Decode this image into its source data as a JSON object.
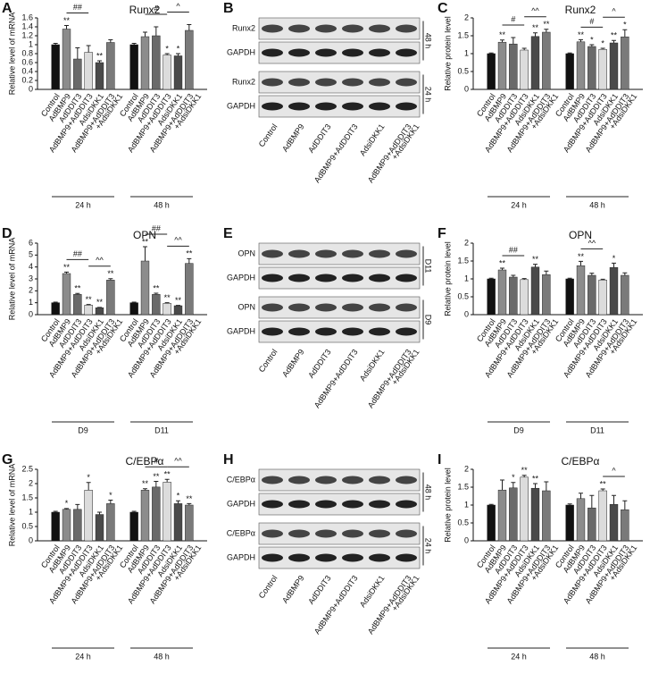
{
  "chart_data": [
    {
      "type": "bar",
      "panel": "A",
      "title": "Runx2",
      "y_label": "Relative level of mRNA",
      "categories": [
        "Control",
        "AdBMP9",
        "AdDDIT3",
        "AdBMP9+AdDDIT3",
        "AdsiDKK1",
        [
          "AdBMP9+AdDDIT3",
          "+AdsiDKK1"
        ]
      ],
      "colors": [
        "#111111",
        "#8c8c8c",
        "#6a6a6a",
        "#dcdcdc",
        "#4a4a4a",
        "#7a7a7a"
      ],
      "ylim": [
        0,
        1.6
      ],
      "yticks": [
        0.0,
        0.2,
        0.4,
        0.6,
        0.8,
        1.0,
        1.2,
        1.4,
        1.6
      ],
      "groups": [
        {
          "name": "24 h",
          "values": [
            1.0,
            1.35,
            0.68,
            0.83,
            0.6,
            1.05
          ],
          "errors": [
            0.03,
            0.08,
            0.25,
            0.15,
            0.04,
            0.06
          ],
          "stars": [
            null,
            "**",
            null,
            null,
            "**",
            null
          ],
          "brackets": [
            {
              "from": 1,
              "to": 3,
              "label": "##"
            }
          ]
        },
        {
          "name": "48 h",
          "values": [
            1.0,
            1.18,
            1.2,
            0.77,
            0.75,
            1.32
          ],
          "errors": [
            0.03,
            0.1,
            0.2,
            0.03,
            0.05,
            0.13
          ],
          "stars": [
            null,
            null,
            null,
            "*",
            "*",
            null
          ],
          "brackets": [
            {
              "from": 1,
              "to": 3,
              "label": "#"
            },
            {
              "from": 3,
              "to": 5,
              "label": "^"
            }
          ]
        }
      ]
    },
    {
      "type": "bar",
      "panel": "C",
      "title": "Runx2",
      "y_label": "Relative protein level",
      "categories": [
        "Control",
        "AdBMP9",
        "AdDDIT3",
        "AdBMP9+AdDDIT3",
        "AdsiDKK1",
        [
          "AdBMP9+AdDDIT3",
          "+AdsiDKK1"
        ]
      ],
      "colors": [
        "#111111",
        "#8c8c8c",
        "#6a6a6a",
        "#dcdcdc",
        "#4a4a4a",
        "#7a7a7a"
      ],
      "ylim": [
        0,
        2.0
      ],
      "yticks": [
        0.0,
        0.5,
        1.0,
        1.5,
        2.0
      ],
      "groups": [
        {
          "name": "24 h",
          "values": [
            1.0,
            1.32,
            1.27,
            1.1,
            1.48,
            1.6
          ],
          "errors": [
            0.02,
            0.06,
            0.18,
            0.05,
            0.1,
            0.08
          ],
          "stars": [
            null,
            "**",
            null,
            null,
            "**",
            "**"
          ],
          "brackets": [
            {
              "from": 1,
              "to": 3,
              "label": "#"
            },
            {
              "from": 3,
              "to": 5,
              "label": "^^"
            }
          ]
        },
        {
          "name": "48 h",
          "values": [
            1.0,
            1.33,
            1.2,
            1.12,
            1.3,
            1.47
          ],
          "errors": [
            0.02,
            0.06,
            0.05,
            0.03,
            0.07,
            0.2
          ],
          "stars": [
            null,
            "**",
            "*",
            "*",
            "**",
            "*"
          ],
          "brackets": [
            {
              "from": 1,
              "to": 3,
              "label": "#"
            },
            {
              "from": 3,
              "to": 5,
              "label": "^"
            }
          ]
        }
      ]
    },
    {
      "type": "bar",
      "panel": "D",
      "title": "OPN",
      "y_label": "Relative level of mRNA",
      "categories": [
        "Control",
        "AdBMP9",
        "AdDDIT3",
        "AdBMP9+AdDDIT3",
        "AdsiDKK1",
        [
          "AdBMP9+AdDDIT3",
          "+AdsiDKK1"
        ]
      ],
      "colors": [
        "#111111",
        "#8c8c8c",
        "#6a6a6a",
        "#dcdcdc",
        "#4a4a4a",
        "#7a7a7a"
      ],
      "ylim": [
        0,
        6
      ],
      "yticks": [
        0,
        1,
        2,
        3,
        4,
        5,
        6
      ],
      "groups": [
        {
          "name": "D9",
          "values": [
            1.0,
            3.45,
            1.7,
            0.8,
            0.58,
            2.9
          ],
          "errors": [
            0.05,
            0.12,
            0.08,
            0.05,
            0.03,
            0.12
          ],
          "stars": [
            null,
            "**",
            "**",
            "**",
            "**",
            "**"
          ],
          "brackets": [
            {
              "from": 1,
              "to": 3,
              "label": "##"
            },
            {
              "from": 3,
              "to": 5,
              "label": "^^"
            }
          ]
        },
        {
          "name": "D11",
          "values": [
            1.0,
            4.5,
            1.7,
            0.95,
            0.75,
            4.3
          ],
          "errors": [
            0.05,
            1.2,
            0.1,
            0.05,
            0.03,
            0.4
          ],
          "stars": [
            null,
            "**",
            "**",
            "**",
            "**",
            "**"
          ],
          "brackets": [
            {
              "from": 1,
              "to": 3,
              "label": "##"
            },
            {
              "from": 3,
              "to": 5,
              "label": "^^"
            }
          ]
        }
      ]
    },
    {
      "type": "bar",
      "panel": "F",
      "title": "OPN",
      "y_label": "Relative protein level",
      "categories": [
        "Control",
        "AdBMP9",
        "AdDDIT3",
        "AdBMP9+AdDDIT3",
        "AdsiDKK1",
        [
          "AdBMP9+AdDDIT3",
          "+AdsiDKK1"
        ]
      ],
      "colors": [
        "#111111",
        "#8c8c8c",
        "#6a6a6a",
        "#dcdcdc",
        "#4a4a4a",
        "#7a7a7a"
      ],
      "ylim": [
        0,
        2.0
      ],
      "yticks": [
        0.0,
        0.5,
        1.0,
        1.5,
        2.0
      ],
      "groups": [
        {
          "name": "D9",
          "values": [
            1.0,
            1.25,
            1.05,
            0.98,
            1.33,
            1.12
          ],
          "errors": [
            0.02,
            0.05,
            0.05,
            0.03,
            0.08,
            0.1
          ],
          "stars": [
            null,
            "**",
            null,
            null,
            "**",
            null
          ],
          "brackets": [
            {
              "from": 1,
              "to": 3,
              "label": "##"
            }
          ]
        },
        {
          "name": "D11",
          "values": [
            1.0,
            1.37,
            1.1,
            0.97,
            1.32,
            1.1
          ],
          "errors": [
            0.02,
            0.12,
            0.06,
            0.02,
            0.12,
            0.07
          ],
          "stars": [
            null,
            "**",
            null,
            null,
            "*",
            null
          ],
          "brackets": [
            {
              "from": 1,
              "to": 3,
              "label": "^^"
            }
          ]
        }
      ]
    },
    {
      "type": "bar",
      "panel": "G",
      "title": "C/EBPα",
      "y_label": "Relative level of mRNA",
      "categories": [
        "Control",
        "AdBMP9",
        "AdDDIT3",
        "AdBMP9+AdDDIT3",
        "AdsiDKK1",
        [
          "AdBMP9+AdDDIT3",
          "+AdsiDKK1"
        ]
      ],
      "colors": [
        "#111111",
        "#8c8c8c",
        "#6a6a6a",
        "#dcdcdc",
        "#4a4a4a",
        "#7a7a7a"
      ],
      "ylim": [
        0,
        2.5
      ],
      "yticks": [
        0.0,
        0.5,
        1.0,
        1.5,
        2.0,
        2.5
      ],
      "groups": [
        {
          "name": "24 h",
          "values": [
            1.0,
            1.1,
            1.1,
            1.77,
            0.92,
            1.3
          ],
          "errors": [
            0.03,
            0.03,
            0.17,
            0.27,
            0.08,
            0.12
          ],
          "stars": [
            null,
            "*",
            null,
            "*",
            null,
            "*"
          ],
          "brackets": []
        },
        {
          "name": "48 h",
          "values": [
            1.0,
            1.77,
            1.88,
            2.05,
            1.3,
            1.25
          ],
          "errors": [
            0.03,
            0.05,
            0.2,
            0.1,
            0.1,
            0.05
          ],
          "stars": [
            null,
            "**",
            "**",
            "**",
            "*",
            "**"
          ],
          "brackets": [
            {
              "from": 1,
              "to": 3,
              "label": "#"
            },
            {
              "from": 3,
              "to": 5,
              "label": "^^"
            }
          ]
        }
      ]
    },
    {
      "type": "bar",
      "panel": "I",
      "title": "C/EBPα",
      "y_label": "Relative protein level",
      "categories": [
        "Control",
        "AdBMP9",
        "AdDDIT3",
        "AdBMP9+AdDDIT3",
        "AdsiDKK1",
        [
          "AdBMP9+AdDDIT3",
          "+AdsiDKK1"
        ]
      ],
      "colors": [
        "#111111",
        "#8c8c8c",
        "#6a6a6a",
        "#dcdcdc",
        "#4a4a4a",
        "#7a7a7a"
      ],
      "ylim": [
        0,
        2.0
      ],
      "yticks": [
        0.0,
        0.5,
        1.0,
        1.5,
        2.0
      ],
      "groups": [
        {
          "name": "24 h",
          "values": [
            1.0,
            1.42,
            1.48,
            1.78,
            1.47,
            1.4
          ],
          "errors": [
            0.02,
            0.28,
            0.15,
            0.05,
            0.13,
            0.25
          ],
          "stars": [
            null,
            null,
            "*",
            "**",
            "**",
            null
          ],
          "brackets": []
        },
        {
          "name": "48 h",
          "values": [
            1.0,
            1.18,
            0.92,
            1.4,
            1.02,
            0.87
          ],
          "errors": [
            0.03,
            0.15,
            0.35,
            0.05,
            0.25,
            0.25
          ],
          "stars": [
            null,
            null,
            null,
            "**",
            null,
            null
          ],
          "brackets": [
            {
              "from": 3,
              "to": 5,
              "label": "^"
            }
          ]
        }
      ]
    }
  ],
  "blots": [
    {
      "panel": "B",
      "rows": [
        "Runx2",
        "GAPDH",
        "Runx2",
        "GAPDH"
      ],
      "times": [
        "48 h",
        "24 h"
      ]
    },
    {
      "panel": "E",
      "rows": [
        "OPN",
        "GAPDH",
        "OPN",
        "GAPDH"
      ],
      "times": [
        "D11",
        "D9"
      ]
    },
    {
      "panel": "H",
      "rows": [
        "C/EBPα",
        "GAPDH",
        "C/EBPα",
        "GAPDH"
      ],
      "times": [
        "48 h",
        "24 h"
      ]
    }
  ]
}
